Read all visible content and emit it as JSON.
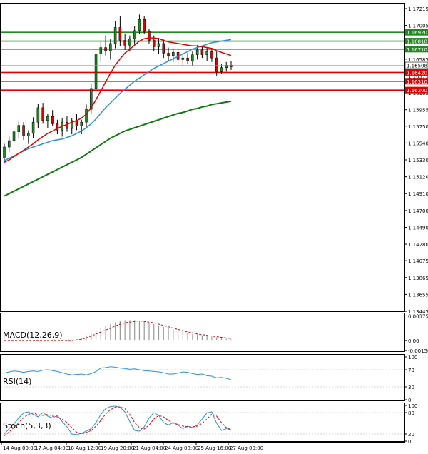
{
  "chart_data": {
    "type": "candlestick",
    "price_axis": {
      "ylim": [
        1.13445,
        1.17215
      ],
      "ticks": [
        "1.17215",
        "1.17005",
        "1.16795",
        "1.16585",
        "1.16375",
        "1.16165",
        "1.15955",
        "1.15750",
        "1.15540",
        "1.15330",
        "1.15120",
        "1.14910",
        "1.14700",
        "1.14490",
        "1.14280",
        "1.14075",
        "1.13865",
        "1.13655",
        "1.13445"
      ]
    },
    "x_labels": [
      "14 Aug 00:00",
      "17 Aug 04:00",
      "18 Aug 12:00",
      "19 Aug 20:00",
      "21 Aug 04:00",
      "24 Aug 08:00",
      "25 Aug 16:00",
      "27 Aug 00:00"
    ],
    "current_price": {
      "value": 1.16508,
      "label": "1.16508"
    },
    "resistance_levels": [
      {
        "value": 1.1692,
        "label": "1.16920",
        "color": "#1f8a1f"
      },
      {
        "value": 1.1681,
        "label": "1.16810",
        "color": "#1f8a1f"
      },
      {
        "value": 1.1671,
        "label": "1.16710",
        "color": "#1f8a1f"
      }
    ],
    "support_levels": [
      {
        "value": 1.1642,
        "label": "1.16420",
        "color": "#e00000"
      },
      {
        "value": 1.1631,
        "label": "1.16310",
        "color": "#e00000"
      },
      {
        "value": 1.162,
        "label": "1.16200",
        "color": "#e00000"
      }
    ],
    "colors": {
      "bull": "#1f8a1f",
      "bear": "#e00000",
      "ma_fast": "#e00000",
      "ma_mid": "#2a8fe0",
      "ma_slow": "#127a12",
      "macd": "#9a9a9a",
      "signal": "#e00000",
      "rsi": "#2a8fe0",
      "stoch_main": "#2a8fe0",
      "stoch_signal": "#e00000",
      "grid": "#b0b0b0"
    },
    "candles": [
      [
        1.1535,
        1.1553,
        1.153,
        1.1549
      ],
      [
        1.1549,
        1.1562,
        1.1543,
        1.1557
      ],
      [
        1.1557,
        1.1574,
        1.1551,
        1.1568
      ],
      [
        1.1568,
        1.1582,
        1.156,
        1.1576
      ],
      [
        1.1576,
        1.158,
        1.1558,
        1.1563
      ],
      [
        1.1563,
        1.157,
        1.1553,
        1.1566
      ],
      [
        1.1566,
        1.1586,
        1.156,
        1.158
      ],
      [
        1.158,
        1.1603,
        1.1573,
        1.1598
      ],
      [
        1.1598,
        1.1604,
        1.1578,
        1.1582
      ],
      [
        1.1582,
        1.159,
        1.1573,
        1.1587
      ],
      [
        1.1587,
        1.1595,
        1.1575,
        1.1578
      ],
      [
        1.1578,
        1.1583,
        1.1565,
        1.157
      ],
      [
        1.157,
        1.1585,
        1.1562,
        1.158
      ],
      [
        1.158,
        1.1588,
        1.1568,
        1.1572
      ],
      [
        1.1572,
        1.1585,
        1.1565,
        1.1582
      ],
      [
        1.1582,
        1.159,
        1.157,
        1.1575
      ],
      [
        1.1575,
        1.1583,
        1.1565,
        1.158
      ],
      [
        1.158,
        1.1602,
        1.1574,
        1.1596
      ],
      [
        1.1596,
        1.1628,
        1.159,
        1.1622
      ],
      [
        1.1622,
        1.1672,
        1.1618,
        1.1665
      ],
      [
        1.1665,
        1.168,
        1.1655,
        1.1673
      ],
      [
        1.1673,
        1.1688,
        1.1663,
        1.1669
      ],
      [
        1.1669,
        1.1684,
        1.1658,
        1.1678
      ],
      [
        1.1678,
        1.1706,
        1.1672,
        1.1698
      ],
      [
        1.1698,
        1.1712,
        1.1675,
        1.1682
      ],
      [
        1.1682,
        1.169,
        1.167,
        1.1676
      ],
      [
        1.1676,
        1.1688,
        1.1668,
        1.1684
      ],
      [
        1.1684,
        1.17,
        1.1676,
        1.1694
      ],
      [
        1.1694,
        1.1714,
        1.169,
        1.1708
      ],
      [
        1.1708,
        1.1712,
        1.169,
        1.1693
      ],
      [
        1.1693,
        1.1696,
        1.1678,
        1.1682
      ],
      [
        1.1682,
        1.1688,
        1.1668,
        1.1674
      ],
      [
        1.1674,
        1.1685,
        1.1665,
        1.1678
      ],
      [
        1.1678,
        1.1683,
        1.166,
        1.1666
      ],
      [
        1.1666,
        1.1673,
        1.1656,
        1.1663
      ],
      [
        1.1663,
        1.1672,
        1.1655,
        1.1667
      ],
      [
        1.1667,
        1.167,
        1.1653,
        1.1658
      ],
      [
        1.1658,
        1.1665,
        1.165,
        1.166
      ],
      [
        1.166,
        1.1666,
        1.1652,
        1.1656
      ],
      [
        1.1656,
        1.1668,
        1.165,
        1.1664
      ],
      [
        1.1664,
        1.1676,
        1.1658,
        1.167
      ],
      [
        1.167,
        1.1674,
        1.166,
        1.1664
      ],
      [
        1.1664,
        1.1673,
        1.1656,
        1.1668
      ],
      [
        1.1668,
        1.1672,
        1.1655,
        1.166
      ],
      [
        1.166,
        1.1668,
        1.1638,
        1.1643
      ],
      [
        1.1643,
        1.1652,
        1.164,
        1.1648
      ],
      [
        1.1648,
        1.1655,
        1.1643,
        1.1651
      ],
      [
        1.1651,
        1.1656,
        1.1645,
        1.1649
      ]
    ],
    "ma_fast": [
      1.153,
      1.1533,
      1.1537,
      1.1541,
      1.1545,
      1.1549,
      1.1553,
      1.1558,
      1.1562,
      1.1566,
      1.1569,
      1.1572,
      1.1575,
      1.1577,
      1.158,
      1.1582,
      1.1585,
      1.159,
      1.1598,
      1.1608,
      1.1619,
      1.163,
      1.1641,
      1.1651,
      1.1659,
      1.1666,
      1.1671,
      1.1676,
      1.1681,
      1.1684,
      1.1685,
      1.1685,
      1.1684,
      1.1682,
      1.168,
      1.1679,
      1.1678,
      1.1677,
      1.1676,
      1.1675,
      1.1675,
      1.1674,
      1.1673,
      1.1672,
      1.1669,
      1.1667,
      1.1665,
      1.1663
    ],
    "ma_mid": [
      1.1532,
      1.1535,
      1.1538,
      1.1541,
      1.1544,
      1.1547,
      1.1549,
      1.1551,
      1.1553,
      1.1555,
      1.1557,
      1.1558,
      1.1559,
      1.1561,
      1.1563,
      1.1566,
      1.1569,
      1.1573,
      1.1578,
      1.1584,
      1.1591,
      1.1598,
      1.1604,
      1.161,
      1.1616,
      1.1621,
      1.1626,
      1.1631,
      1.1635,
      1.1639,
      1.1643,
      1.1647,
      1.165,
      1.1653,
      1.1656,
      1.1659,
      1.1662,
      1.1665,
      1.1668,
      1.1671,
      1.1673,
      1.1675,
      1.1677,
      1.1679,
      1.168,
      1.1681,
      1.1682,
      1.1683
    ],
    "ma_slow": [
      1.1488,
      1.1491,
      1.1494,
      1.1497,
      1.15,
      1.1503,
      1.1506,
      1.1509,
      1.1512,
      1.1515,
      1.1518,
      1.1521,
      1.1524,
      1.1527,
      1.153,
      1.1533,
      1.1536,
      1.154,
      1.1544,
      1.1548,
      1.1552,
      1.1556,
      1.156,
      1.1563,
      1.1566,
      1.1569,
      1.1571,
      1.1573,
      1.1575,
      1.1577,
      1.1579,
      1.1581,
      1.1583,
      1.1585,
      1.1587,
      1.1589,
      1.1591,
      1.1592,
      1.1594,
      1.1596,
      1.1597,
      1.1599,
      1.16,
      1.1602,
      1.1603,
      1.1604,
      1.1605,
      1.1606
    ],
    "macd_panel": {
      "title": "MACD(12,26,9)",
      "ticks": [
        "0.003756",
        "0.00",
        "-0.001508"
      ],
      "ylim": [
        -0.0015,
        0.0038
      ],
      "histogram": [
        0.0,
        0.0,
        0.0,
        0.0,
        0.0,
        0.0,
        0.0,
        0.0,
        0.0,
        0.0,
        0.0,
        0.0,
        0.0,
        0.0,
        0.0,
        0.0002,
        0.0004,
        0.0008,
        0.0012,
        0.0016,
        0.0019,
        0.0022,
        0.0025,
        0.0028,
        0.003,
        0.0031,
        0.0031,
        0.0031,
        0.003,
        0.0029,
        0.0027,
        0.0025,
        0.0023,
        0.0021,
        0.0019,
        0.0017,
        0.0015,
        0.0013,
        0.0011,
        0.001,
        0.0009,
        0.0008,
        0.0007,
        0.0006,
        0.0005,
        0.0004,
        0.0003,
        0.0002
      ],
      "signal": [
        0.0,
        0.0,
        0.0,
        0.0,
        0.0,
        0.0,
        0.0,
        0.0,
        0.0,
        0.0,
        0.0,
        0.0,
        0.0,
        0.0,
        0.0,
        0.0001,
        0.0002,
        0.0004,
        0.0007,
        0.001,
        0.0013,
        0.0016,
        0.0019,
        0.0022,
        0.0025,
        0.0027,
        0.0028,
        0.0029,
        0.003,
        0.0029,
        0.0028,
        0.0027,
        0.0025,
        0.0023,
        0.0021,
        0.0019,
        0.0017,
        0.0015,
        0.0013,
        0.0012,
        0.001,
        0.0009,
        0.0008,
        0.0007,
        0.0006,
        0.0005,
        0.0004,
        0.0003
      ]
    },
    "rsi_panel": {
      "title": "RSI(14)",
      "ticks": [
        "100",
        "70",
        "30",
        "0"
      ],
      "ylim": [
        0,
        100
      ],
      "values": [
        62,
        65,
        67,
        66,
        64,
        66,
        67,
        66,
        69,
        70,
        68,
        66,
        63,
        60,
        58,
        59,
        60,
        58,
        61,
        66,
        74,
        75,
        77,
        76,
        74,
        73,
        71,
        72,
        70,
        68,
        67,
        66,
        65,
        63,
        60,
        60,
        62,
        65,
        64,
        61,
        59,
        60,
        56,
        55,
        51,
        52,
        50,
        47
      ]
    },
    "stoch_panel": {
      "title": "Stoch(5,3,3)",
      "ticks": [
        "100",
        "80",
        "20",
        "0"
      ],
      "ylim": [
        0,
        100
      ],
      "main": [
        20,
        35,
        48,
        65,
        79,
        82,
        75,
        68,
        80,
        70,
        65,
        72,
        55,
        40,
        20,
        18,
        22,
        28,
        35,
        52,
        75,
        91,
        97,
        98,
        95,
        82,
        55,
        30,
        28,
        40,
        65,
        80,
        72,
        52,
        45,
        52,
        45,
        35,
        42,
        38,
        45,
        62,
        79,
        82,
        50,
        30,
        35,
        32
      ],
      "signal": [
        15,
        26,
        38,
        52,
        66,
        75,
        79,
        74,
        72,
        75,
        70,
        68,
        62,
        52,
        38,
        25,
        21,
        24,
        30,
        42,
        58,
        76,
        88,
        95,
        96,
        91,
        75,
        52,
        38,
        34,
        45,
        62,
        72,
        68,
        58,
        50,
        47,
        42,
        40,
        40,
        42,
        50,
        62,
        76,
        70,
        52,
        38,
        32
      ]
    }
  }
}
